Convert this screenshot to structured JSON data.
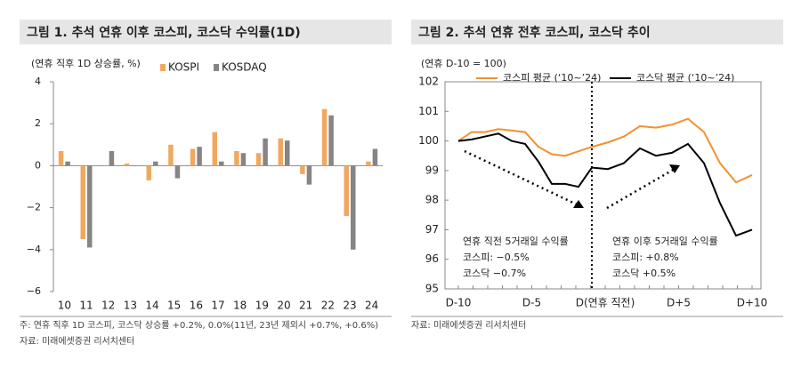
{
  "chart_data": [
    {
      "type": "bar",
      "title": "그림 1. 추석 연휴 이후 코스피, 코스닥 수익률(1D)",
      "y_label": "(연휴 직후 1D 상승률, %)",
      "categories": [
        "10",
        "11",
        "12",
        "13",
        "14",
        "15",
        "16",
        "17",
        "18",
        "19",
        "20",
        "21",
        "22",
        "23",
        "24"
      ],
      "series": [
        {
          "name": "KOSPI",
          "color": "#f0a860",
          "values": [
            0.7,
            -3.5,
            0.0,
            0.1,
            -0.7,
            1.0,
            0.8,
            1.6,
            0.7,
            0.6,
            1.3,
            -0.4,
            2.7,
            -2.4,
            0.2
          ]
        },
        {
          "name": "KOSDAQ",
          "color": "#858585",
          "values": [
            0.2,
            -3.9,
            0.7,
            0.0,
            0.2,
            -0.6,
            0.9,
            0.2,
            0.6,
            1.3,
            1.2,
            -0.9,
            2.4,
            -4.0,
            0.8
          ]
        }
      ],
      "ylim": [
        -6,
        4
      ],
      "yticks": [
        {
          "value": -6,
          "label": "−6"
        },
        {
          "value": -4,
          "label": "−4"
        },
        {
          "value": -2,
          "label": "−2"
        },
        0,
        2,
        4
      ],
      "legend": "top",
      "notes": [
        "주: 연휴 직후 1D 코스피, 코스닥 상승률 +0.2%, 0.0%(11년, 23년 제외시 +0.7%, +0.6%)",
        "자료: 미래에셋증권 리서치센터"
      ]
    },
    {
      "type": "line",
      "title": "그림 2. 추석 연휴 전후 코스피, 코스닥 추이",
      "y_label": "(연휴 D-10 = 100)",
      "categories": [
        "D-10",
        null,
        null,
        null,
        null,
        "D-5",
        null,
        null,
        null,
        null,
        "D(연휴 직전)",
        null,
        null,
        null,
        null,
        "D+5",
        null,
        null,
        null,
        null,
        "D+10"
      ],
      "series": [
        {
          "name": "코스피 평균 (‘10~’24)",
          "color": "#f0922e",
          "values": [
            100.0,
            100.3,
            100.3,
            100.4,
            100.35,
            100.3,
            99.8,
            99.55,
            99.5,
            99.65,
            99.8,
            99.95,
            100.15,
            100.5,
            100.45,
            100.55,
            100.75,
            100.3,
            99.25,
            98.6,
            98.85
          ]
        },
        {
          "name": "코스닥 평균 (‘10~’24)",
          "color": "#000000",
          "values": [
            100.0,
            100.05,
            100.15,
            100.25,
            100.0,
            99.9,
            99.3,
            98.55,
            98.55,
            98.45,
            99.1,
            99.05,
            99.25,
            99.75,
            99.5,
            99.6,
            99.9,
            99.25,
            97.9,
            96.8,
            97.0
          ]
        }
      ],
      "ylim": [
        95,
        102
      ],
      "yticks": [
        95,
        96,
        97,
        98,
        99,
        100,
        101,
        102
      ],
      "legend": "top",
      "annotations": [
        [
          "연휴 직전 5거래일 수익률",
          "코스피: −0.5%",
          "코스닥 −0.7%"
        ],
        [
          "연휴 이후 5거래일 수익률",
          "코스피: +0.8%",
          "코스닥 +0.5%"
        ]
      ],
      "notes": [
        "자료: 미래에셋증권 리서치센터"
      ]
    }
  ]
}
